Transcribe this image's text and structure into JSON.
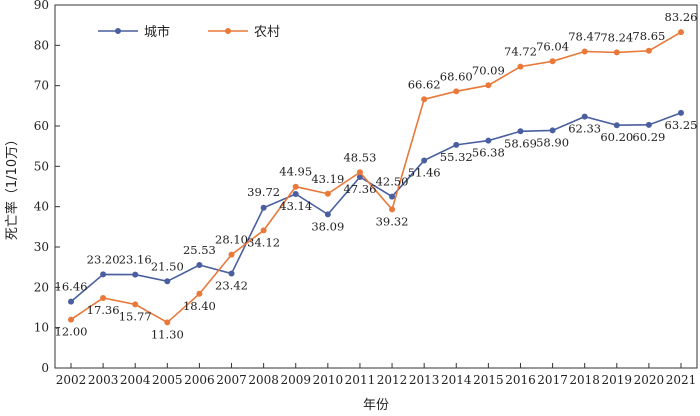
{
  "chart_data": {
    "type": "line",
    "xlabel": "年份",
    "ylabel": "死亡率（1/10万）",
    "ylim": [
      0,
      90
    ],
    "yticks": [
      0,
      10,
      20,
      30,
      40,
      50,
      60,
      70,
      80,
      90
    ],
    "categories": [
      "2002",
      "2003",
      "2004",
      "2005",
      "2006",
      "2007",
      "2008",
      "2009",
      "2010",
      "2011",
      "2012",
      "2013",
      "2014",
      "2015",
      "2016",
      "2017",
      "2018",
      "2019",
      "2020",
      "2021"
    ],
    "legend_position": "top-left",
    "grid": false,
    "series": [
      {
        "name": "城市",
        "color": "#4a5fa0",
        "values": [
          16.46,
          23.2,
          23.16,
          21.5,
          25.53,
          23.42,
          39.72,
          43.14,
          38.09,
          47.36,
          42.5,
          51.46,
          55.32,
          56.38,
          58.69,
          58.9,
          62.33,
          60.2,
          60.29,
          63.25
        ],
        "labels": [
          "16.46",
          "23.20",
          "23.16",
          "21.50",
          "25.53",
          "23.42",
          "39.72",
          "43.14",
          "38.09",
          "47.36",
          "42.50",
          "51.46",
          "55.32",
          "56.38",
          "58.69",
          "58.90",
          "62.33",
          "60.20",
          "60.29",
          "63.25"
        ]
      },
      {
        "name": "农村",
        "color": "#e8793a",
        "values": [
          12.0,
          17.36,
          15.77,
          11.3,
          18.4,
          28.1,
          34.12,
          44.95,
          43.19,
          48.53,
          39.32,
          66.62,
          68.6,
          70.09,
          74.72,
          76.04,
          78.47,
          78.24,
          78.65,
          83.26
        ],
        "labels": [
          "12.00",
          "17.36",
          "15.77",
          "11.30",
          "18.40",
          "28.10",
          "34.12",
          "44.95",
          "43.19",
          "48.53",
          "39.32",
          "66.62",
          "68.60",
          "70.09",
          "74.72",
          "76.04",
          "78.47",
          "78.24",
          "78.65",
          "83.26"
        ]
      }
    ]
  }
}
